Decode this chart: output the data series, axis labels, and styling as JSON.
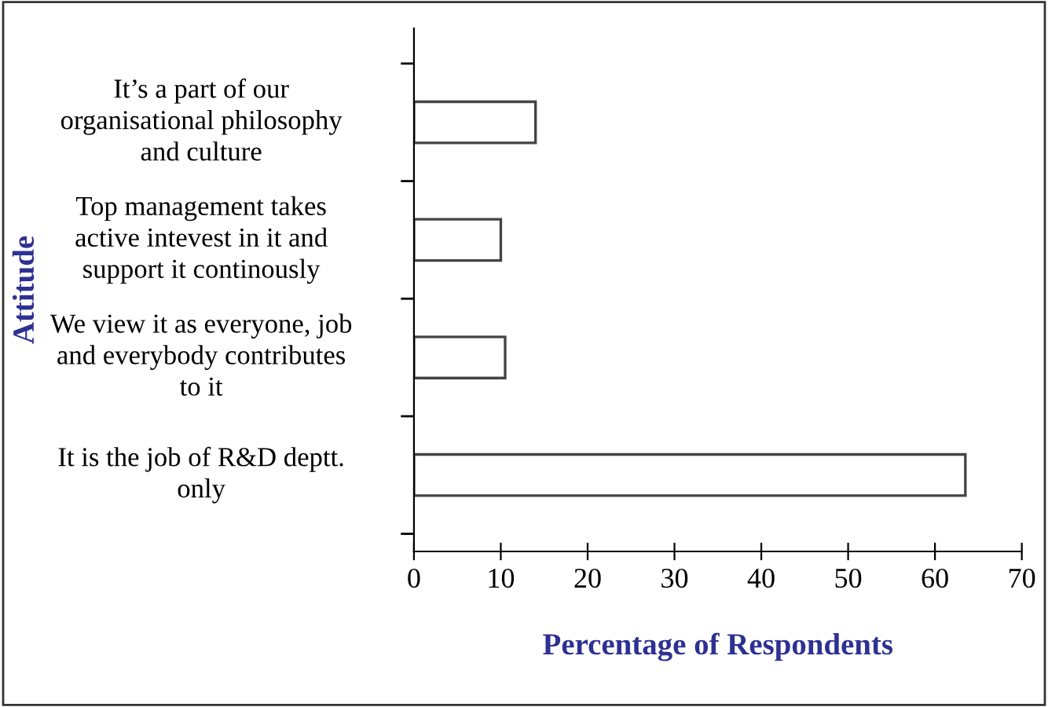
{
  "chart_data": {
    "type": "bar",
    "orientation": "horizontal",
    "categories": [
      "It’s a part of our organisational philosophy and culture",
      "Top management takes active intevest in it and support it continously",
      "We view it as everyone, job and everybody contributes to it",
      "It is the job of R&D deptt. only"
    ],
    "values": [
      14,
      10,
      10.5,
      63.5
    ],
    "color": "#ffffff",
    "xlim": [
      0,
      70
    ],
    "xticks": [
      0,
      10,
      20,
      30,
      40,
      50,
      60,
      70
    ],
    "xlabel": "Percentage of Respondents",
    "ylabel": "Attitude",
    "grid": false,
    "legend": false
  }
}
